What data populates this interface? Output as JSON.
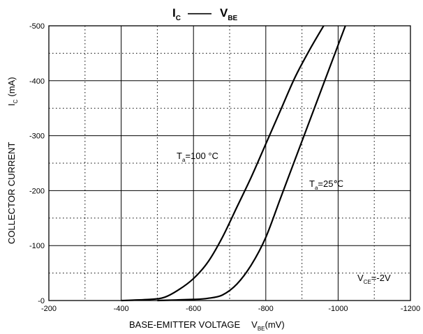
{
  "chart_data": {
    "type": "line",
    "title": {
      "main": "I",
      "main_sub": "C",
      "dash": "——",
      "second": "V",
      "second_sub": "BE"
    },
    "xlabel": {
      "text": "BASE-EMITTER VOLTAGE",
      "symbol": "V",
      "symbol_sub": "BE",
      "unit": "(mV)"
    },
    "ylabel": {
      "text": "COLLECTOR CURRENT",
      "symbol": "I",
      "symbol_sub": "C",
      "unit": "(mA)"
    },
    "xlim": [
      -200,
      -1200
    ],
    "ylim": [
      0,
      -500
    ],
    "x_ticks": [
      "-200",
      "-400",
      "-600",
      "-800",
      "-1000",
      "-1200"
    ],
    "y_ticks": [
      "-0",
      "-100",
      "-200",
      "-300",
      "-400",
      "-500"
    ],
    "x_tick_values": [
      -200,
      -400,
      -600,
      -800,
      -1000,
      -1200
    ],
    "y_tick_values": [
      0,
      -100,
      -200,
      -300,
      -400,
      -500
    ],
    "grid": {
      "major": true,
      "minor": true
    },
    "series": [
      {
        "label": {
          "symbol": "T",
          "symbol_sub": "a",
          "value": "=100 °C"
        },
        "x": [
          -400,
          -480,
          -520,
          -560,
          -600,
          -640,
          -680,
          -720,
          -760,
          -800,
          -840,
          -880,
          -920,
          -960
        ],
        "y": [
          0,
          -2,
          -6,
          -20,
          -40,
          -70,
          -115,
          -170,
          -225,
          -285,
          -345,
          -405,
          -455,
          -500
        ]
      },
      {
        "label": {
          "symbol": "T",
          "symbol_sub": "a",
          "value": "=25℃"
        },
        "x": [
          -500,
          -600,
          -640,
          -680,
          -720,
          -760,
          -800,
          -840,
          -880,
          -920,
          -960,
          -1000,
          -1020
        ],
        "y": [
          0,
          -2,
          -4,
          -10,
          -30,
          -65,
          -115,
          -185,
          -255,
          -325,
          -395,
          -465,
          -500
        ]
      }
    ],
    "annotation": {
      "symbol": "V",
      "symbol_sub": "CE",
      "value": "=-2V"
    }
  }
}
